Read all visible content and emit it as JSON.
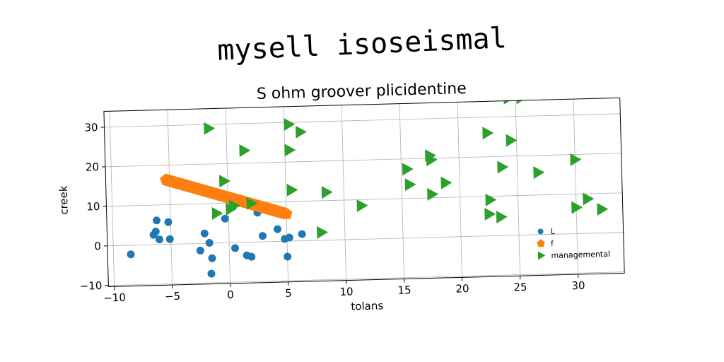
{
  "chart_data": {
    "type": "scatter",
    "suptitle": "mysell isoseismal",
    "title": "S ohm groover plicidentine",
    "xlabel": "tolans",
    "ylabel": "creek",
    "xlim": [
      -10.5,
      34.0
    ],
    "ylim": [
      -10.3,
      34.0
    ],
    "xticks": [
      -10,
      -5,
      0,
      5,
      10,
      15,
      20,
      25,
      30
    ],
    "yticks": [
      -10,
      0,
      10,
      20,
      30
    ],
    "grid": true,
    "legend_position": "lower right",
    "series": [
      {
        "name": "L",
        "marker": "circle",
        "color": "#1f77b4",
        "points": [
          [
            -8.5,
            -2.3
          ],
          [
            -6.5,
            2.5
          ],
          [
            -6.3,
            3.3
          ],
          [
            -6.2,
            6.1
          ],
          [
            -6.0,
            1.3
          ],
          [
            -5.2,
            5.6
          ],
          [
            -5.1,
            1.3
          ],
          [
            -2.5,
            -1.8
          ],
          [
            -2.1,
            2.5
          ],
          [
            -1.7,
            0.1
          ],
          [
            -1.5,
            -3.8
          ],
          [
            -1.6,
            -7.7
          ],
          [
            -0.3,
            6.1
          ],
          [
            0.5,
            -1.4
          ],
          [
            1.5,
            -3.3
          ],
          [
            1.9,
            -3.7
          ],
          [
            2.5,
            7.4
          ],
          [
            2.9,
            1.5
          ],
          [
            4.2,
            3.1
          ],
          [
            4.8,
            0.6
          ],
          [
            5.2,
            0.9
          ],
          [
            5.0,
            -3.9
          ],
          [
            6.3,
            1.7
          ]
        ]
      },
      {
        "name": "f",
        "marker": "pentagon",
        "color": "#ff7f0e",
        "line": {
          "x0": -5.3,
          "y0": 16.3,
          "x1": 5.0,
          "y1": 6.9
        }
      },
      {
        "name": "managemental",
        "marker": "triangle-right",
        "color": "#2ca02c",
        "points": [
          [
            -1.5,
            29.0
          ],
          [
            1.5,
            23.2
          ],
          [
            -0.3,
            15.6
          ],
          [
            -1.0,
            7.5
          ],
          [
            0.2,
            8.5
          ],
          [
            0.5,
            9.3
          ],
          [
            2.0,
            9.8
          ],
          [
            5.4,
            29.5
          ],
          [
            6.4,
            27.5
          ],
          [
            5.4,
            23.0
          ],
          [
            5.5,
            12.9
          ],
          [
            8.5,
            12.1
          ],
          [
            11.5,
            8.5
          ],
          [
            8.0,
            2.0
          ],
          [
            15.5,
            17.4
          ],
          [
            15.7,
            13.5
          ],
          [
            17.5,
            20.7
          ],
          [
            17.6,
            19.6
          ],
          [
            17.6,
            10.9
          ],
          [
            18.8,
            13.7
          ],
          [
            22.5,
            26.0
          ],
          [
            22.6,
            9.1
          ],
          [
            22.5,
            5.5
          ],
          [
            23.7,
            17.3
          ],
          [
            23.5,
            4.7
          ],
          [
            24.5,
            24.0
          ],
          [
            24.4,
            34.7
          ],
          [
            25.5,
            34.7
          ],
          [
            26.8,
            15.7
          ],
          [
            30.0,
            18.7
          ],
          [
            30.0,
            6.6
          ],
          [
            31.0,
            8.7
          ],
          [
            32.2,
            6.0
          ]
        ]
      }
    ]
  }
}
